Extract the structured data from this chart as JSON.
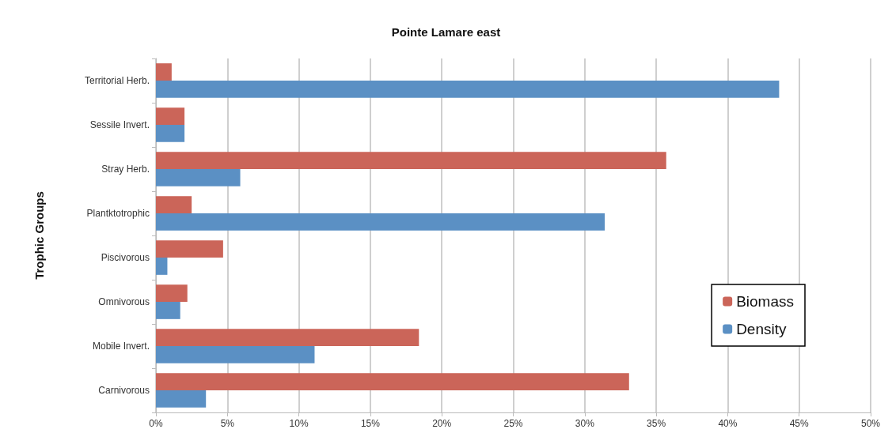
{
  "chart_data": {
    "type": "bar",
    "title": "Pointe Lamare east",
    "ylabel": "Trophic Groups",
    "orientation": "horizontal",
    "categories": [
      "Territorial Herb.",
      "Sessile Invert.",
      "Stray Herb.",
      "Plantktotrophic",
      "Piscivorous",
      "Omnivorous",
      "Mobile Invert.",
      "Carnivorous"
    ],
    "series": [
      {
        "name": "Biomass",
        "color": "#cb6559",
        "values": [
          1.1,
          2.0,
          35.7,
          2.5,
          4.7,
          2.2,
          18.4,
          33.1
        ]
      },
      {
        "name": "Density",
        "color": "#5b90c4",
        "values": [
          43.6,
          2.0,
          5.9,
          31.4,
          0.8,
          1.7,
          11.1,
          3.5
        ]
      }
    ],
    "xlim": [
      0,
      50
    ],
    "xticks": [
      {
        "value": 0,
        "label": "0%"
      },
      {
        "value": 5,
        "label": "5%"
      },
      {
        "value": 10,
        "label": "10%"
      },
      {
        "value": 15,
        "label": "15%"
      },
      {
        "value": 20,
        "label": "20%"
      },
      {
        "value": 25,
        "label": "25%"
      },
      {
        "value": 30,
        "label": "30%"
      },
      {
        "value": 35,
        "label": "35%"
      },
      {
        "value": 40,
        "label": "40%"
      },
      {
        "value": 45,
        "label": "45%"
      },
      {
        "value": 50,
        "label": "50%"
      }
    ],
    "grid": "x",
    "legend": "right"
  }
}
